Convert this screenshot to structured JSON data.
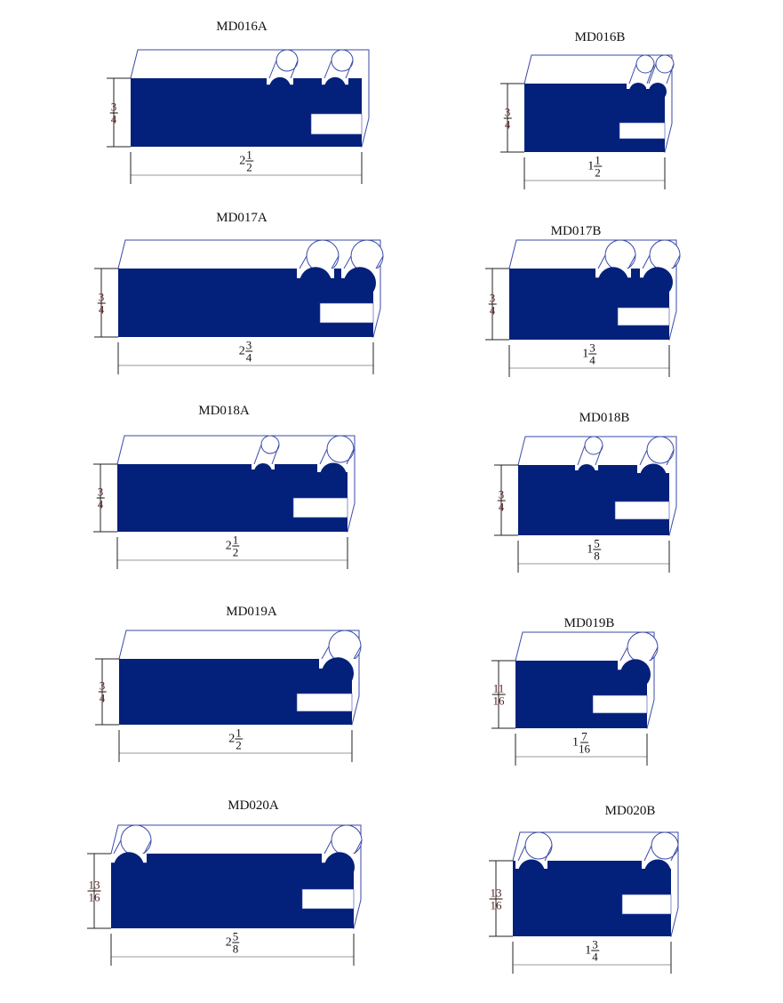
{
  "colors": {
    "profile_fill": "#03207a",
    "outline": "#3a4aa8",
    "dimension": "#222222"
  },
  "profiles": [
    {
      "title": "MD016A",
      "height": {
        "whole": "",
        "num": "3",
        "den": "4"
      },
      "width": {
        "whole": "2",
        "num": "1",
        "den": "2"
      }
    },
    {
      "title": "MD016B",
      "height": {
        "whole": "",
        "num": "3",
        "den": "4"
      },
      "width": {
        "whole": "1",
        "num": "1",
        "den": "2"
      }
    },
    {
      "title": "MD017A",
      "height": {
        "whole": "",
        "num": "3",
        "den": "4"
      },
      "width": {
        "whole": "2",
        "num": "3",
        "den": "4"
      }
    },
    {
      "title": "MD017B",
      "height": {
        "whole": "",
        "num": "3",
        "den": "4"
      },
      "width": {
        "whole": "1",
        "num": "3",
        "den": "4"
      }
    },
    {
      "title": "MD018A",
      "height": {
        "whole": "",
        "num": "3",
        "den": "4"
      },
      "width": {
        "whole": "2",
        "num": "1",
        "den": "2"
      }
    },
    {
      "title": "MD018B",
      "height": {
        "whole": "",
        "num": "3",
        "den": "4"
      },
      "width": {
        "whole": "1",
        "num": "5",
        "den": "8"
      }
    },
    {
      "title": "MD019A",
      "height": {
        "whole": "",
        "num": "3",
        "den": "4"
      },
      "width": {
        "whole": "2",
        "num": "1",
        "den": "2"
      }
    },
    {
      "title": "MD019B",
      "height": {
        "whole": "",
        "num": "11",
        "den": "16"
      },
      "width": {
        "whole": "1",
        "num": "7",
        "den": "16"
      }
    },
    {
      "title": "MD020A",
      "height": {
        "whole": "",
        "num": "13",
        "den": "16"
      },
      "width": {
        "whole": "2",
        "num": "5",
        "den": "8"
      }
    },
    {
      "title": "MD020B",
      "height": {
        "whole": "",
        "num": "13",
        "den": "16"
      },
      "width": {
        "whole": "1",
        "num": "3",
        "den": "4"
      }
    }
  ]
}
